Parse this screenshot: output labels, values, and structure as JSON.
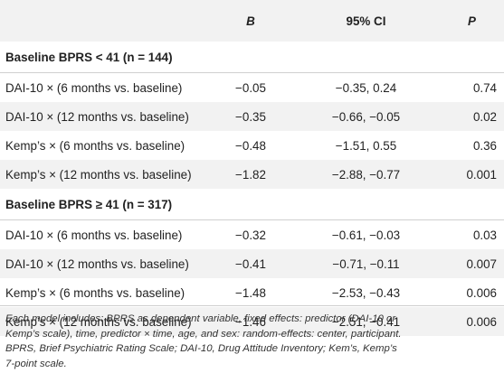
{
  "table": {
    "headers": [
      "",
      "B",
      "95% CI",
      "P"
    ],
    "groups": [
      {
        "title": "Baseline BPRS < 41 (n = 144)",
        "rows": [
          {
            "label": "DAI-10 × (6 months vs. baseline)",
            "b": "−0.05",
            "ci": "−0.35, 0.24",
            "p": "0.74"
          },
          {
            "label": "DAI-10 × (12 months vs. baseline)",
            "b": "−0.35",
            "ci": "−0.66, −0.05",
            "p": "0.02"
          },
          {
            "label": "Kemp’s × (6 months vs. baseline)",
            "b": "−0.48",
            "ci": "−1.51, 0.55",
            "p": "0.36"
          },
          {
            "label": "Kemp’s × (12 months vs. baseline)",
            "b": "−1.82",
            "ci": "−2.88, −0.77",
            "p": "0.001"
          }
        ]
      },
      {
        "title": "Baseline BPRS ≥ 41 (n = 317)",
        "rows": [
          {
            "label": "DAI-10 × (6 months vs. baseline)",
            "b": "−0.32",
            "ci": "−0.61, −0.03",
            "p": "0.03"
          },
          {
            "label": "DAI-10 × (12 months vs. baseline)",
            "b": "−0.41",
            "ci": "−0.71, −0.11",
            "p": "0.007"
          },
          {
            "label": "Kemp’s × (6 months vs. baseline)",
            "b": "−1.48",
            "ci": "−2.53, −0.43",
            "p": "0.006"
          },
          {
            "label": "Kemp’s × (12 months vs. baseline)",
            "b": "−1.46",
            "ci": "−2.51, −0.41",
            "p": "0.006"
          }
        ]
      }
    ]
  },
  "footnote": [
    "Each model includes: BPRS as dependent variable, fixed effects: predictor (DAI-10 or",
    "Kemp’s scale), time, predictor × time, age, and sex: random-effects: center, participant.",
    "BPRS, Brief Psychiatric Rating Scale; DAI-10, Drug Attitude Inventory; Kem’s, Kemp’s",
    "7-point scale."
  ]
}
